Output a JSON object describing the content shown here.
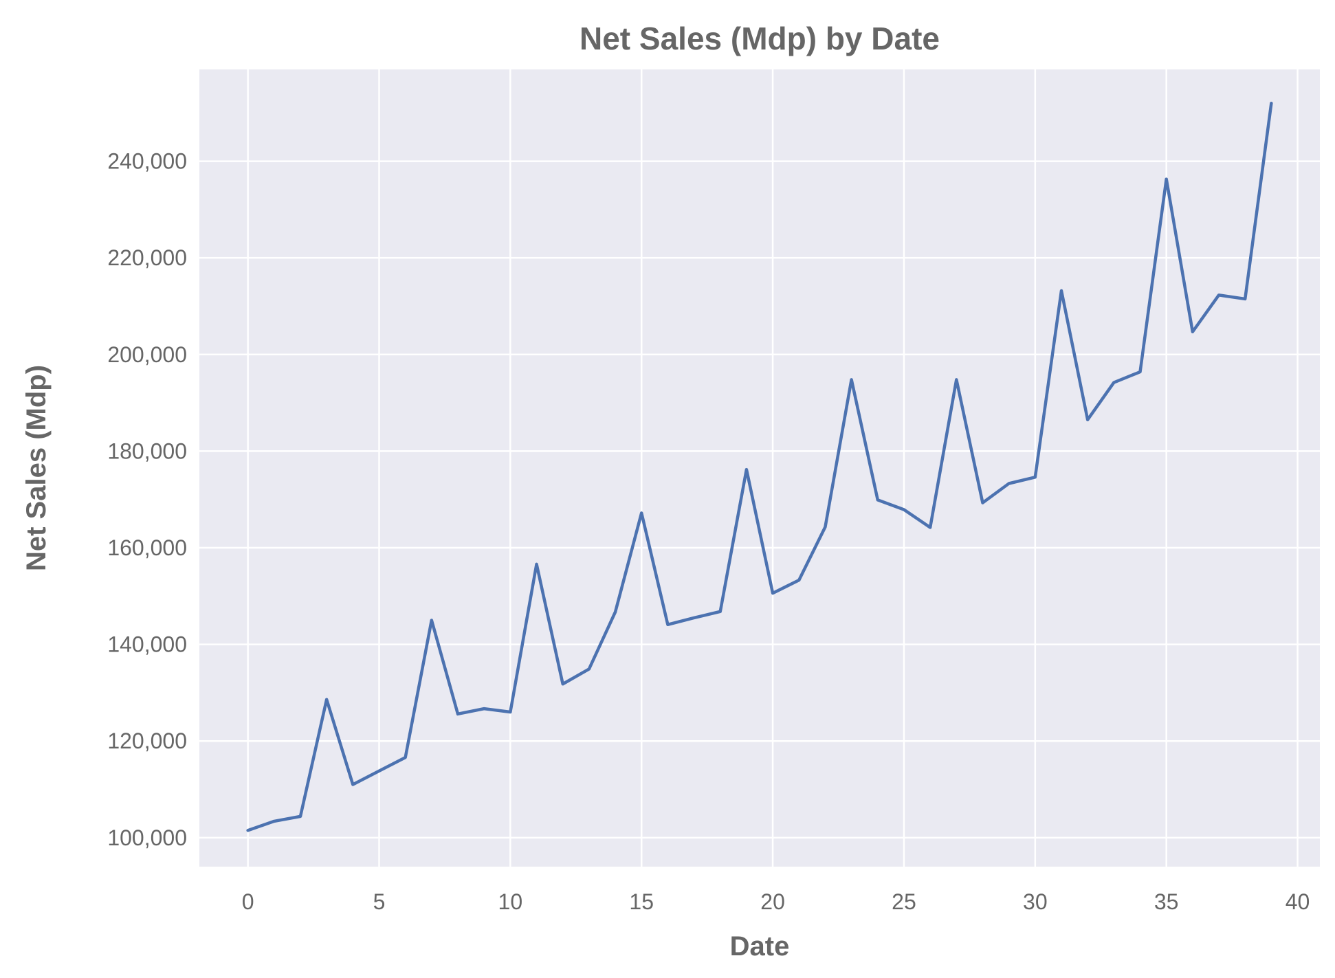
{
  "chart_data": {
    "type": "line",
    "title": "Net Sales (Mdp) by Date",
    "xlabel": "Date",
    "ylabel": "Net Sales (Mdp)",
    "xlim": [
      -1.85,
      40.85
    ],
    "ylim": [
      94000,
      259000
    ],
    "x_ticks": [
      0,
      5,
      10,
      15,
      20,
      25,
      30,
      35,
      40
    ],
    "y_ticks": [
      100000,
      120000,
      140000,
      160000,
      180000,
      200000,
      220000,
      240000
    ],
    "y_tick_labels": [
      "100,000",
      "120,000",
      "140,000",
      "160,000",
      "180,000",
      "200,000",
      "220,000",
      "240,000"
    ],
    "grid": true,
    "background_color": "#eaeaf2",
    "grid_color": "#ffffff",
    "line_color": "#4c72b0",
    "x": [
      0,
      1,
      2,
      3,
      4,
      5,
      6,
      7,
      8,
      9,
      10,
      11,
      12,
      13,
      14,
      15,
      16,
      17,
      18,
      19,
      20,
      21,
      22,
      23,
      24,
      25,
      26,
      27,
      28,
      29,
      30,
      31,
      32,
      33,
      34,
      35,
      36,
      37,
      38,
      39
    ],
    "series": [
      {
        "values": [
          101500,
          103400,
          104400,
          128600,
          111000,
          113800,
          116600,
          145000,
          125600,
          126700,
          126000,
          156600,
          131800,
          134900,
          146700,
          167200,
          144100,
          145500,
          146800,
          176200,
          150600,
          153300,
          164300,
          194800,
          169900,
          167900,
          164200,
          194800,
          169300,
          173300,
          174600,
          213200,
          186500,
          194200,
          196400,
          236300,
          204700,
          212300,
          211500,
          252000
        ]
      }
    ]
  }
}
